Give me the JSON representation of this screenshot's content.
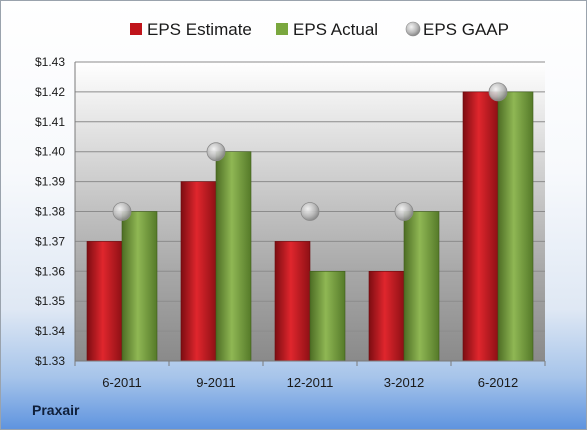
{
  "company": "Praxair",
  "chart_data": {
    "type": "bar",
    "categories": [
      "6-2011",
      "9-2011",
      "12-2011",
      "3-2012",
      "6-2012"
    ],
    "series": [
      {
        "name": "EPS Estimate",
        "type": "bar",
        "color": "#c0141b",
        "values": [
          1.37,
          1.39,
          1.37,
          1.36,
          1.42
        ]
      },
      {
        "name": "EPS Actual",
        "type": "bar",
        "color": "#6e9a35",
        "values": [
          1.38,
          1.4,
          1.36,
          1.38,
          1.42
        ]
      },
      {
        "name": "EPS GAAP",
        "type": "marker",
        "color": "#b4b4b4",
        "values": [
          1.38,
          1.4,
          1.38,
          1.38,
          1.42
        ]
      }
    ],
    "ylim": [
      1.33,
      1.43
    ],
    "yticks": [
      "$1.33",
      "$1.34",
      "$1.35",
      "$1.36",
      "$1.37",
      "$1.38",
      "$1.39",
      "$1.40",
      "$1.41",
      "$1.42",
      "$1.43"
    ],
    "ytick_values": [
      1.33,
      1.34,
      1.35,
      1.36,
      1.37,
      1.38,
      1.39,
      1.4,
      1.41,
      1.42,
      1.43
    ],
    "legend_position": "top",
    "grid": true
  }
}
